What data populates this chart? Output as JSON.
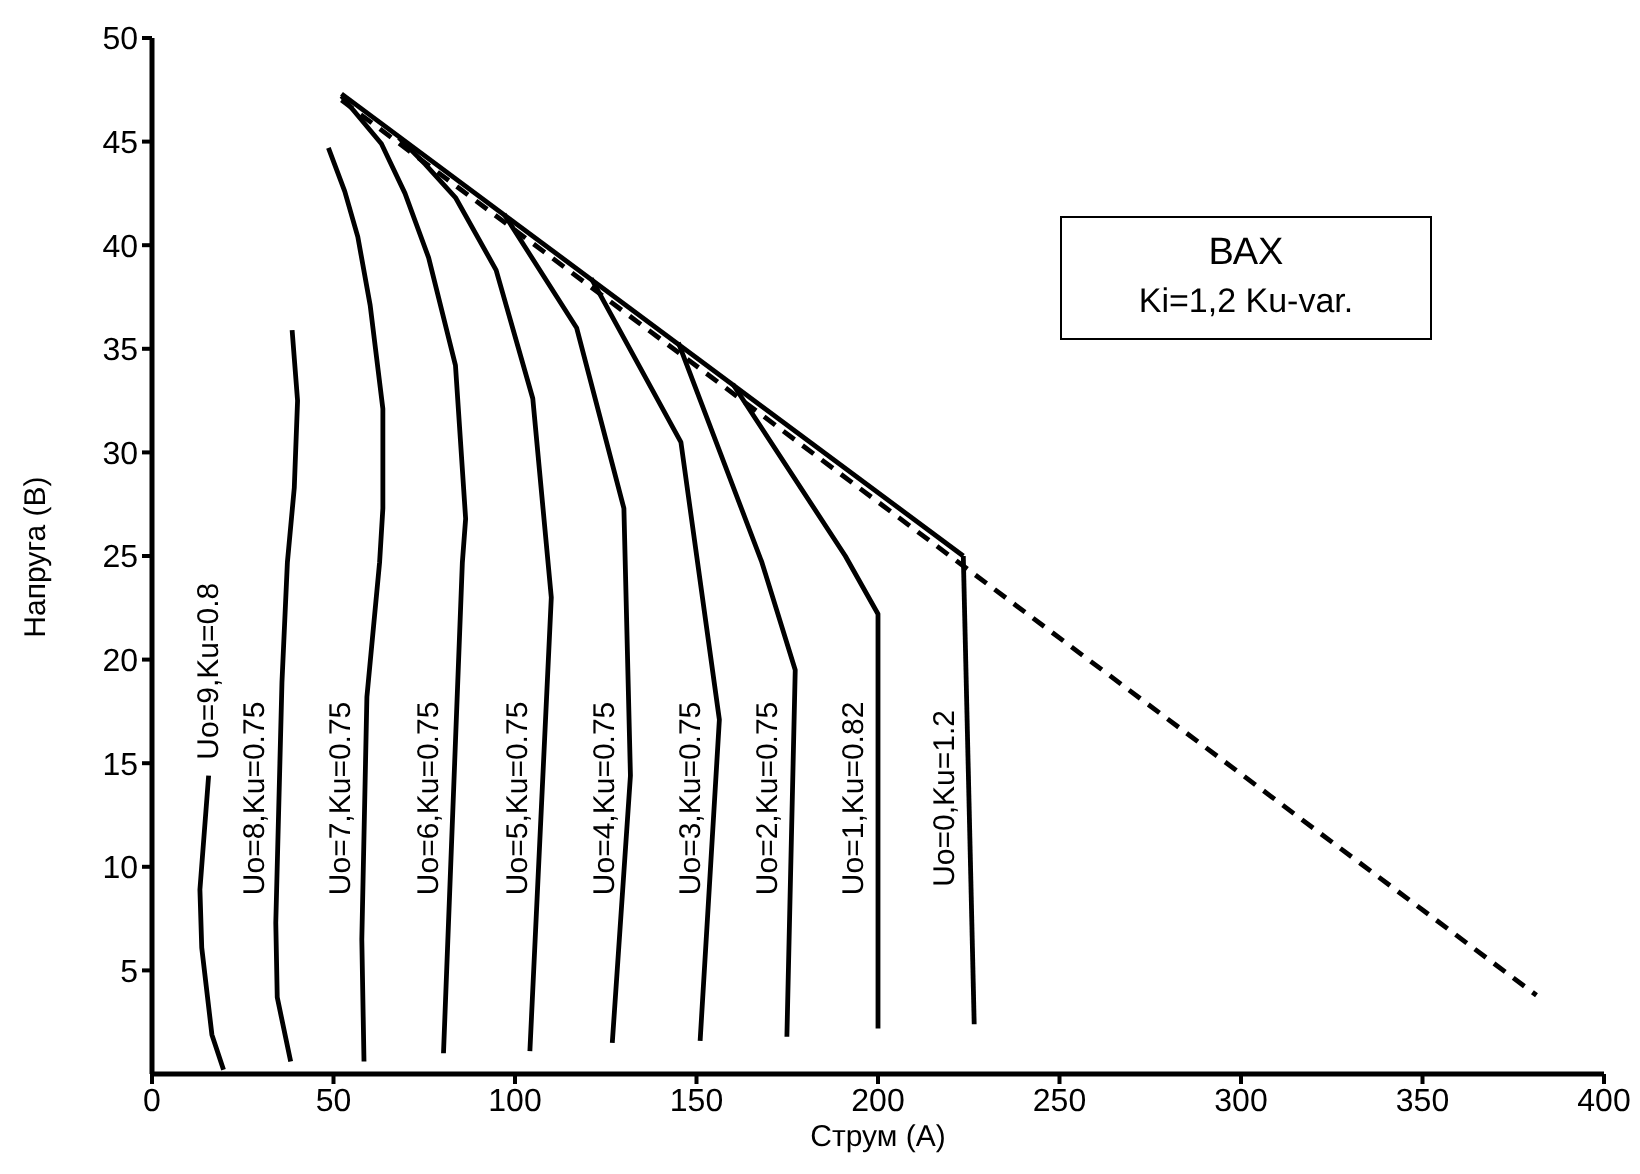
{
  "chart_data": {
    "type": "line",
    "xlabel": "Струм (А)",
    "ylabel": "Напруга (В)",
    "xlim": [
      0,
      400
    ],
    "xticks": [
      0,
      50,
      100,
      150,
      200,
      250,
      300,
      350,
      400
    ],
    "ylim": [
      0,
      50
    ],
    "yticks": [
      5,
      10,
      15,
      20,
      25,
      30,
      35,
      40,
      45,
      50
    ],
    "marker": "none",
    "series": [
      {
        "color": "#000000",
        "x": [
          52.2,
          223.5
        ],
        "values": [
          47.3,
          25.0
        ]
      },
      {
        "color": "#000000",
        "line_style": "dashed",
        "x": [
          52.2,
          381.4
        ],
        "values": [
          47.0,
          3.8
        ]
      },
      {
        "name": "Uo=9,Ku=0.8",
        "color": "#000000",
        "x": [
          15.6,
          13.2,
          13.7,
          16.5,
          19.7
        ],
        "values": [
          14.4,
          8.9,
          6.1,
          1.9,
          0.2
        ]
      },
      {
        "name": "Uo=8,Ku=0.75",
        "color": "#000000",
        "x": [
          38.6,
          40.1,
          39.2,
          37.3,
          35.8,
          34.1,
          34.5,
          38.2
        ],
        "values": [
          35.9,
          32.5,
          28.3,
          24.7,
          18.9,
          7.3,
          3.7,
          0.6
        ]
      },
      {
        "name": "Uo=7,Ku=0.75",
        "color": "#000000",
        "x": [
          48.6,
          53.1,
          56.7,
          60.1,
          63.6,
          63.6,
          62.7,
          59.2,
          57.8,
          58.4
        ],
        "values": [
          44.7,
          42.6,
          40.4,
          37.1,
          32.1,
          27.3,
          24.7,
          18.2,
          6.5,
          0.6
        ]
      },
      {
        "name": "Uo=6,Ku=0.75",
        "color": "#000000",
        "x": [
          52.2,
          63.2,
          69.7,
          76.2,
          83.6,
          86.4,
          85.5,
          80.3
        ],
        "values": [
          47.2,
          44.9,
          42.5,
          39.4,
          34.2,
          26.8,
          24.7,
          1.0
        ]
      },
      {
        "name": "Uo=5,Ku=0.75",
        "color": "#000000",
        "x": [
          68,
          75.3,
          83.6,
          94.8,
          104.9,
          110,
          104.1
        ],
        "values": [
          45.2,
          43.9,
          42.3,
          38.8,
          32.6,
          23.0,
          1.1
        ]
      },
      {
        "name": "Uo=4,Ku=0.75",
        "color": "#000000",
        "x": [
          97,
          117,
          130,
          131.8,
          126.8
        ],
        "values": [
          41.5,
          36.0,
          27.3,
          14.4,
          1.5
        ]
      },
      {
        "name": "Uo=3,Ku=0.75",
        "color": "#000000",
        "x": [
          121,
          145.7,
          156.3,
          151
        ],
        "values": [
          38.4,
          30.5,
          17.1,
          1.6
        ]
      },
      {
        "name": "Uo=2,Ku=0.75",
        "color": "#000000",
        "x": [
          145,
          168,
          177.2,
          174.9
        ],
        "values": [
          35.3,
          24.7,
          19.5,
          1.8
        ]
      },
      {
        "name": "Uo=1,Ku=0.82",
        "color": "#000000",
        "x": [
          160,
          191,
          200,
          200
        ],
        "values": [
          33.3,
          25,
          22.2,
          2.2
        ]
      },
      {
        "name": "Uo=0,Ku=1.2",
        "color": "#000000",
        "x": [
          223.5,
          226.5
        ],
        "values": [
          25.0,
          2.4
        ]
      }
    ],
    "annotations": [
      "ВАХ",
      "Ki=1,2 Ku-var."
    ]
  }
}
